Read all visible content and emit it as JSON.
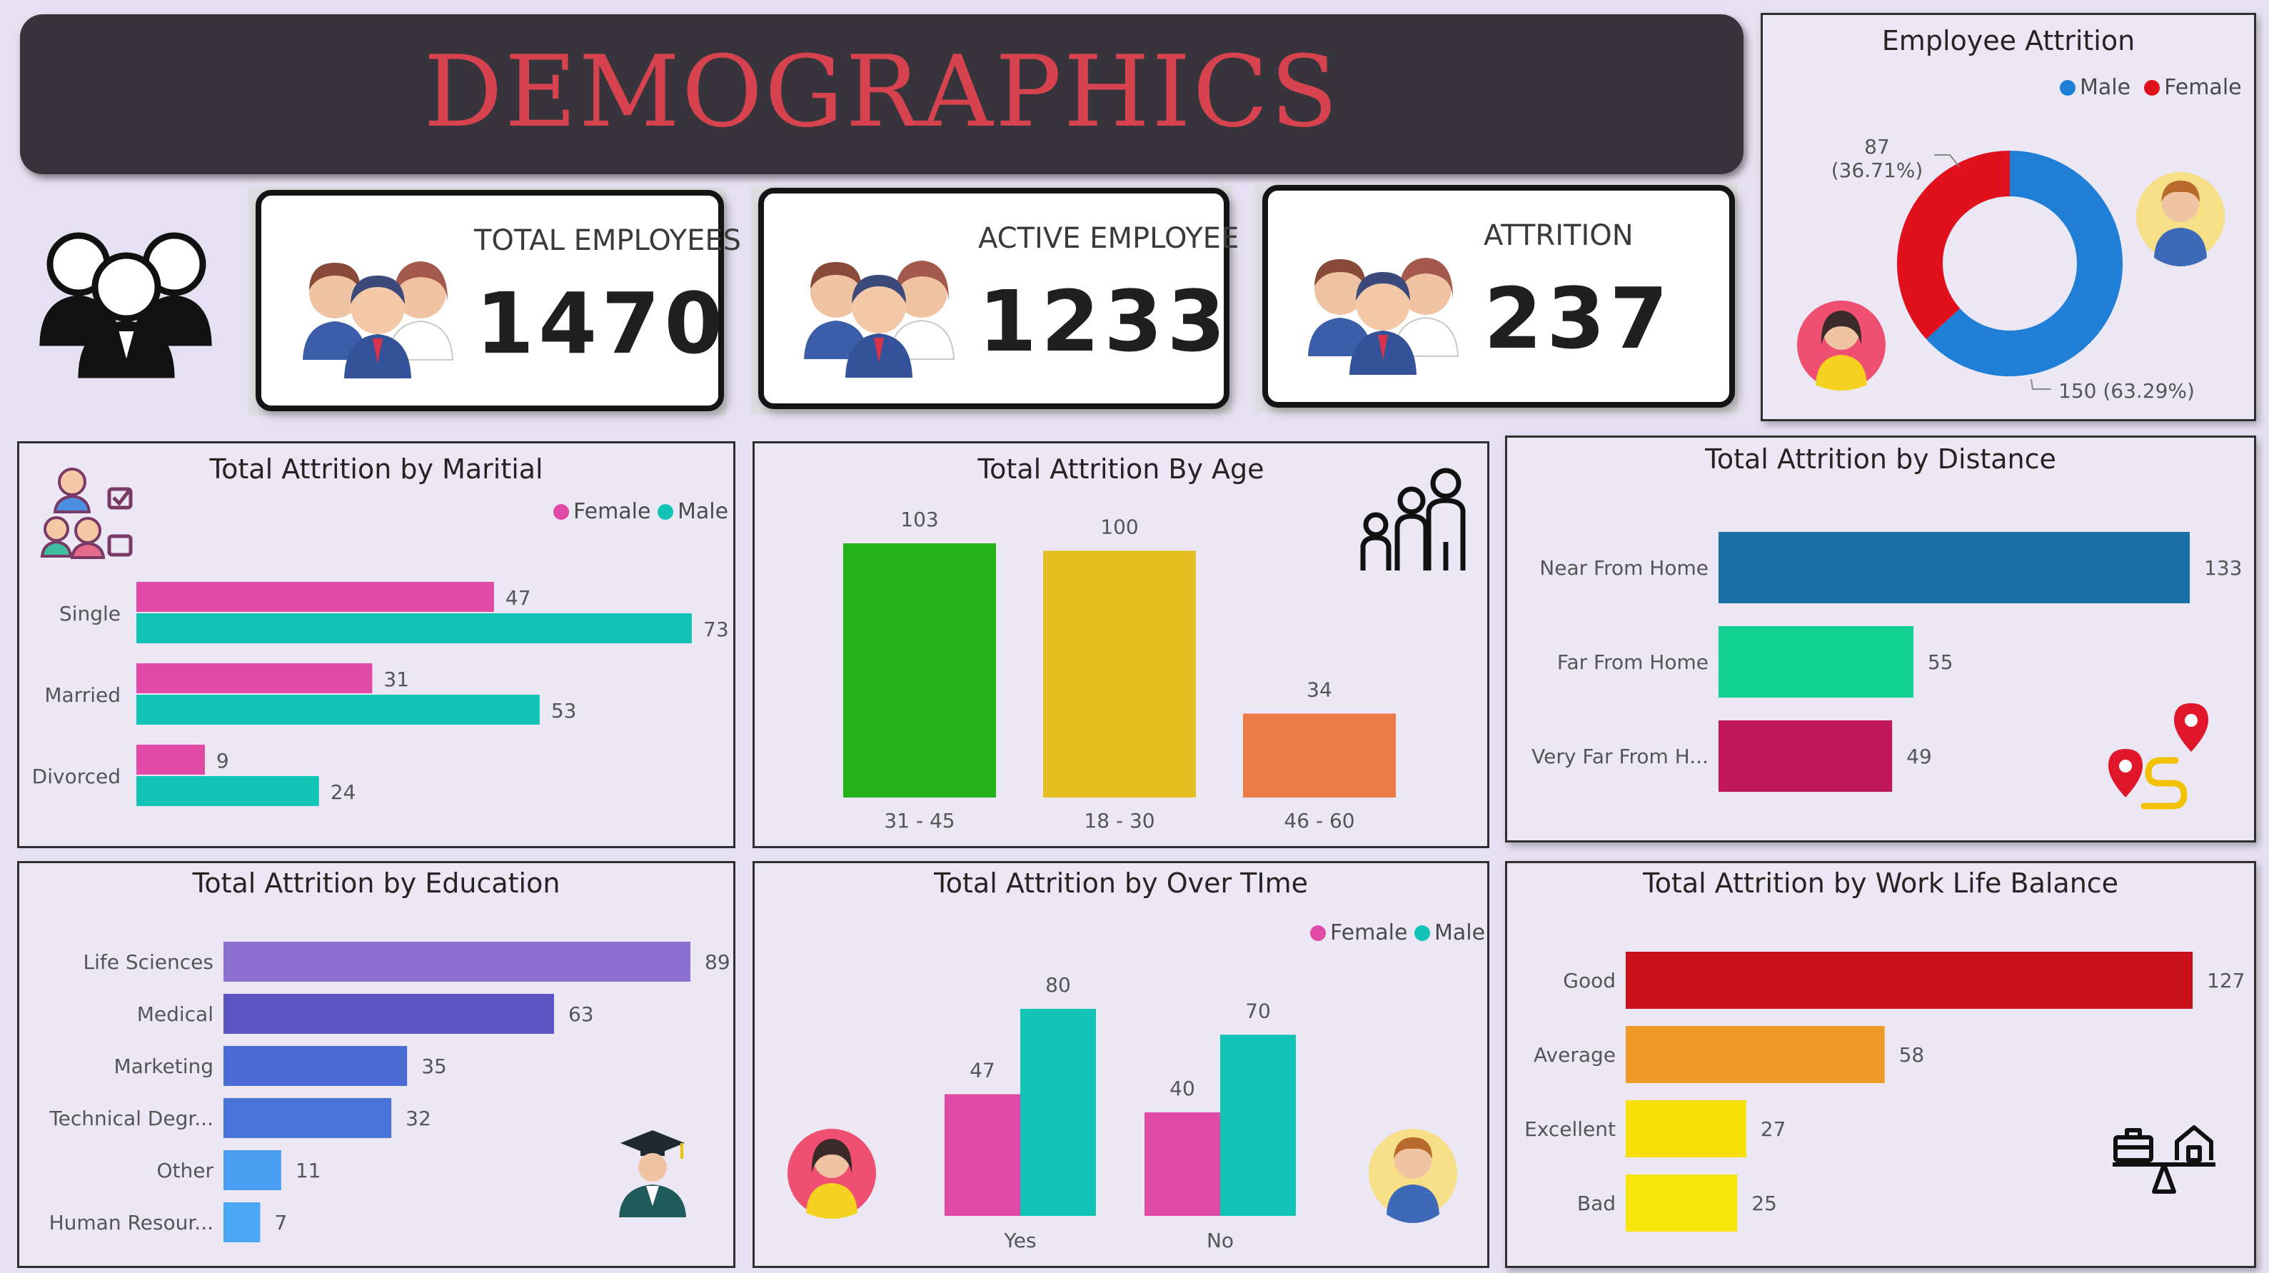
{
  "header": {
    "title": "DEMOGRAPHICS"
  },
  "kpis": [
    {
      "label": "TOTAL EMPLOYEES",
      "value": "1470"
    },
    {
      "label": "ACTIVE EMPLOYEE",
      "value": "1233"
    },
    {
      "label": "ATTRITION",
      "value": "237"
    }
  ],
  "colors": {
    "female": "#e04aa6",
    "male": "#12c4b6",
    "donut_male": "#1f7fd6",
    "donut_female": "#e0101d",
    "legend_male": "#1f7fd6",
    "legend_female": "#e0101d"
  },
  "chart_data": [
    {
      "id": "gender",
      "type": "pie",
      "title": "Employee Attrition",
      "legend": [
        "Male",
        "Female"
      ],
      "slices": [
        {
          "name": "Male",
          "value": 150,
          "label": "150 (63.29%)"
        },
        {
          "name": "Female",
          "value": 87,
          "label": "87",
          "sublabel": "(36.71%)"
        }
      ]
    },
    {
      "id": "marital",
      "type": "bar",
      "orientation": "horizontal",
      "title": "Total Attrition by Maritial",
      "legend": [
        "Female",
        "Male"
      ],
      "categories": [
        "Single",
        "Married",
        "Divorced"
      ],
      "series": [
        {
          "name": "Female",
          "values": [
            47,
            31,
            9
          ]
        },
        {
          "name": "Male",
          "values": [
            73,
            53,
            24
          ]
        }
      ],
      "xlim": [
        0,
        80
      ]
    },
    {
      "id": "age",
      "type": "bar",
      "title": "Total Attrition By Age",
      "categories": [
        "31 - 45",
        "18 - 30",
        "46 - 60"
      ],
      "values": [
        103,
        100,
        34
      ],
      "colors": [
        "#22b21a",
        "#e5be22",
        "#e97d45"
      ],
      "ylim": [
        0,
        110
      ]
    },
    {
      "id": "distance",
      "type": "bar",
      "orientation": "horizontal",
      "title": "Total Attrition by Distance",
      "categories": [
        "Near From Home",
        "Far From Home",
        "Very Far From H..."
      ],
      "values": [
        133,
        55,
        49
      ],
      "colors": [
        "#1a6fa6",
        "#12d08f",
        "#c0175a"
      ],
      "xlim": [
        0,
        133
      ]
    },
    {
      "id": "education",
      "type": "bar",
      "orientation": "horizontal",
      "title": "Total Attrition by Education",
      "categories": [
        "Life Sciences",
        "Medical",
        "Marketing",
        "Technical Degr...",
        "Other",
        "Human Resour..."
      ],
      "values": [
        89,
        63,
        35,
        32,
        11,
        7
      ],
      "colors": [
        "#8e70d2",
        "#5a53c4",
        "#4b6bd5",
        "#4b74d8",
        "#4a9ef2",
        "#4aa8f5"
      ],
      "xlim": [
        0,
        89
      ]
    },
    {
      "id": "overtime",
      "type": "bar",
      "title": "Total Attrition by Over TIme",
      "legend": [
        "Female",
        "Male"
      ],
      "categories": [
        "Yes",
        "No"
      ],
      "series": [
        {
          "name": "Female",
          "values": [
            47,
            40
          ]
        },
        {
          "name": "Male",
          "values": [
            80,
            70
          ]
        }
      ],
      "ylim": [
        0,
        90
      ]
    },
    {
      "id": "worklife",
      "type": "bar",
      "orientation": "horizontal",
      "title": "Total Attrition by Work Life Balance",
      "categories": [
        "Good",
        "Average",
        "Excellent",
        "Bad"
      ],
      "values": [
        127,
        58,
        27,
        25
      ],
      "colors": [
        "#c8101a",
        "#ef9a26",
        "#f7e008",
        "#f9e60c"
      ],
      "xlim": [
        0,
        127
      ]
    }
  ]
}
